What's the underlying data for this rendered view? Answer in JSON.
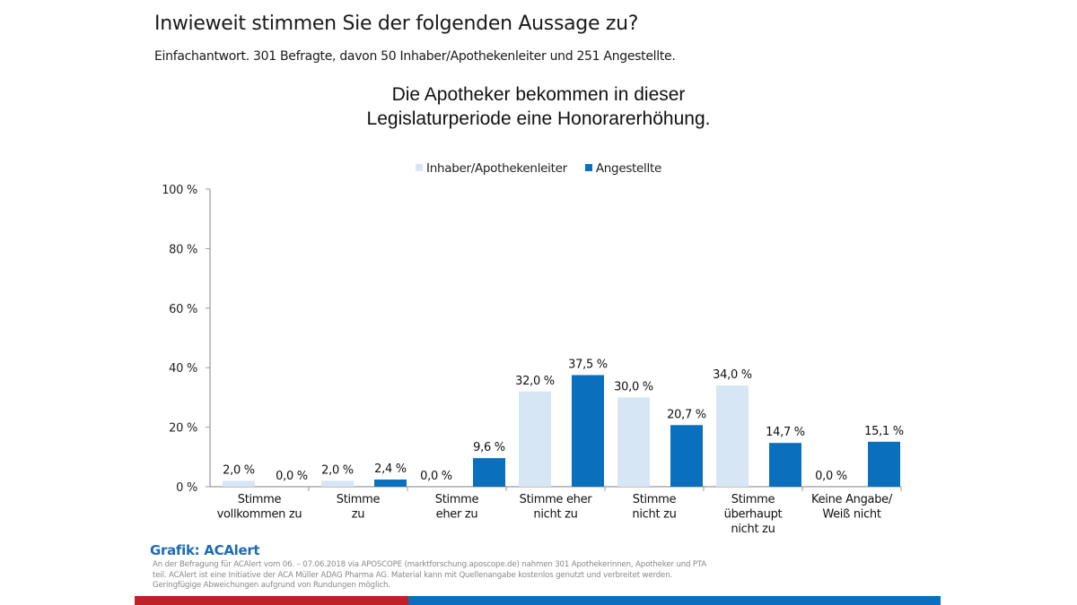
{
  "header": {
    "question": "Inwieweit stimmen Sie der folgenden Aussage zu?",
    "subtitle": "Einfachantwort. 301 Befragte, davon 50 Inhaber/Apothekenleiter und 251 Angestellte."
  },
  "colors": {
    "series1": "#d6e6f5",
    "series2": "#0a6fbd",
    "axis": "#9a9a9a",
    "source": "#1f6bb5",
    "footer_red": "#c0202a",
    "footer_blue": "#0a6fbd"
  },
  "chart_data": {
    "type": "bar",
    "title": "Die Apotheker bekommen in dieser Legislaturperiode eine Honorarerhöhung.",
    "title_lines": [
      "Die Apotheker bekommen in dieser",
      "Legislaturperiode eine Honorarerhöhung."
    ],
    "xlabel": "",
    "ylabel": "",
    "ylim": [
      0,
      100
    ],
    "yticks": [
      0,
      20,
      40,
      60,
      80,
      100
    ],
    "ytick_labels": [
      "0 %",
      "20 %",
      "40 %",
      "60 %",
      "80 %",
      "100 %"
    ],
    "grid": false,
    "legend_position": "top-center",
    "categories": [
      [
        "Stimme",
        "vollkommen zu"
      ],
      [
        "Stimme",
        "zu"
      ],
      [
        "Stimme",
        "eher zu"
      ],
      [
        "Stimme eher",
        "nicht zu"
      ],
      [
        "Stimme",
        "nicht zu"
      ],
      [
        "Stimme",
        "überhaupt",
        "nicht zu"
      ],
      [
        "Keine Angabe/",
        "Weiß nicht"
      ]
    ],
    "series": [
      {
        "name": "Inhaber/Apothekenleiter",
        "values": [
          2.0,
          2.0,
          0.0,
          32.0,
          30.0,
          34.0,
          0.0
        ],
        "labels": [
          "2,0 %",
          "2,0 %",
          "0,0 %",
          "32,0 %",
          "30,0 %",
          "34,0 %",
          "0,0 %"
        ]
      },
      {
        "name": "Angestellte",
        "values": [
          0.0,
          2.4,
          9.6,
          37.5,
          20.7,
          14.7,
          15.1
        ],
        "labels": [
          "0,0 %",
          "2,4 %",
          "9,6 %",
          "37,5 %",
          "20,7 %",
          "14,7 %",
          "15,1 %"
        ]
      }
    ]
  },
  "footer": {
    "source": "Grafik: ACAlert",
    "note": "An der Befragung für ACAlert vom 06. – 07.06.2018 via APOSCOPE (marktforschung.aposcope.de) nahmen 301 Apothekerinnen, Apotheker und PTA teil. ACAlert ist eine Initiative der ACA Müller ADAG Pharma AG. Material kann mit Quellenangabe kostenlos genutzt und verbreitet werden. Geringfügige Abweichungen aufgrund von Rundungen möglich."
  }
}
